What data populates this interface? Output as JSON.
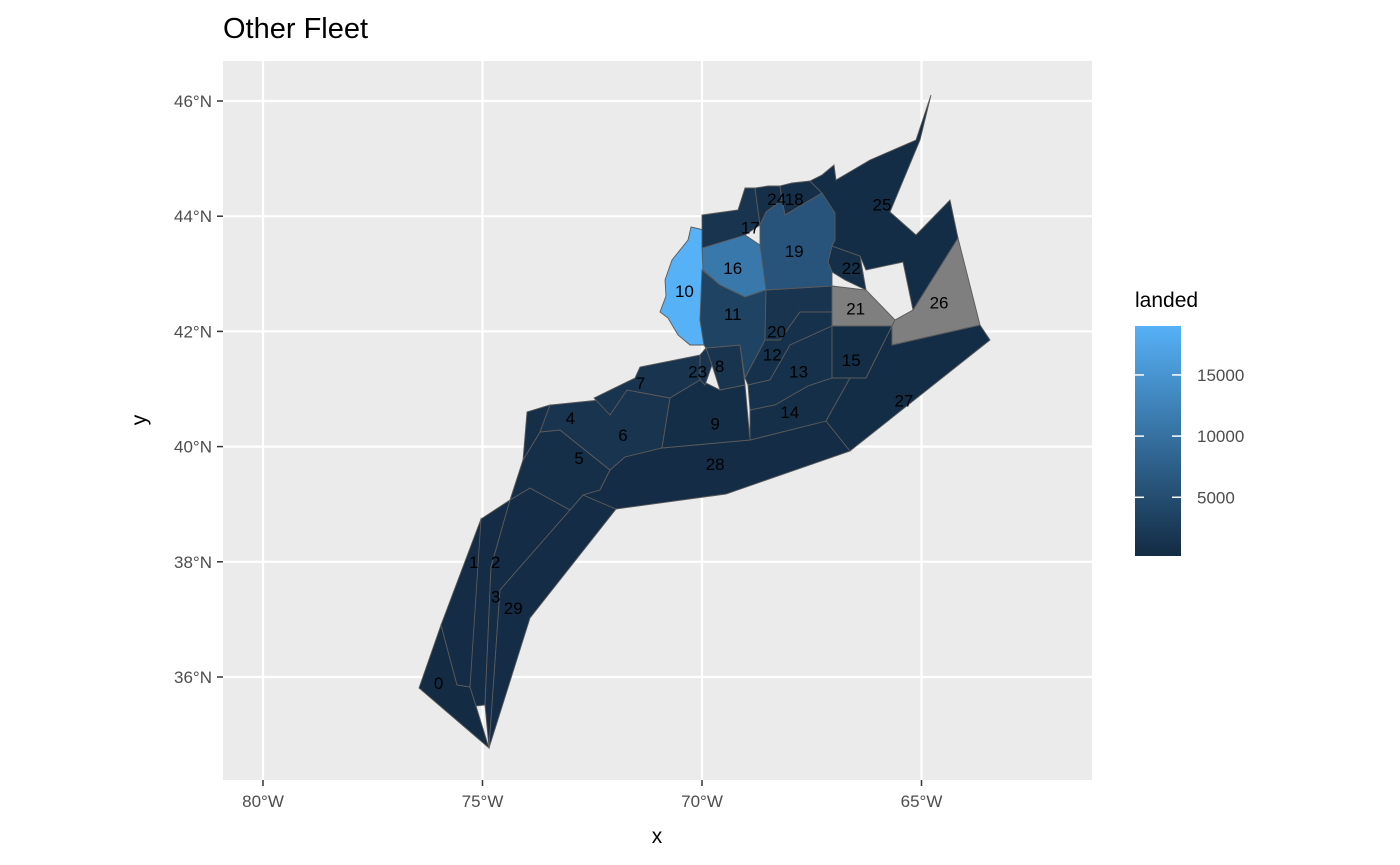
{
  "chart_data": {
    "type": "choropleth-map",
    "title": "Other Fleet",
    "xlabel": "x",
    "ylabel": "y",
    "x_ticks": [
      "80°W",
      "75°W",
      "70°W",
      "65°W"
    ],
    "y_ticks": [
      "36°N",
      "38°N",
      "40°N",
      "42°N",
      "44°N",
      "46°N"
    ],
    "legend": {
      "title": "landed",
      "ticks": [
        {
          "label": "15000",
          "value": 15000
        },
        {
          "label": "10000",
          "value": 10000
        },
        {
          "label": "5000",
          "value": 5000
        }
      ],
      "range": [
        200,
        19000
      ],
      "low_color": "#132B43",
      "high_color": "#56B1F7",
      "na_color": "#7F7F7F"
    },
    "zones": [
      {
        "id": "0",
        "label": "0",
        "lon": -76.0,
        "lat": 35.9,
        "landed": 300
      },
      {
        "id": "1",
        "label": "1",
        "lon": -75.2,
        "lat": 38.0,
        "landed": 400
      },
      {
        "id": "2",
        "label": "2",
        "lon": -74.7,
        "lat": 38.0,
        "landed": 400
      },
      {
        "id": "3",
        "label": "3",
        "lon": -74.7,
        "lat": 37.4,
        "landed": 400
      },
      {
        "id": "4",
        "label": "4",
        "lon": -73.0,
        "lat": 40.5,
        "landed": 800
      },
      {
        "id": "5",
        "label": "5",
        "lon": -72.8,
        "lat": 39.8,
        "landed": 800
      },
      {
        "id": "6",
        "label": "6",
        "lon": -71.8,
        "lat": 40.2,
        "landed": 1500
      },
      {
        "id": "7",
        "label": "7",
        "lon": -71.4,
        "lat": 41.1,
        "landed": 1500
      },
      {
        "id": "8",
        "label": "8",
        "lon": -69.6,
        "lat": 41.4,
        "landed": 1500
      },
      {
        "id": "9",
        "label": "9",
        "lon": -69.7,
        "lat": 40.4,
        "landed": 600
      },
      {
        "id": "10",
        "label": "10",
        "lon": -70.4,
        "lat": 42.7,
        "landed": 19000
      },
      {
        "id": "11",
        "label": "11",
        "lon": -69.3,
        "lat": 42.3,
        "landed": 3500
      },
      {
        "id": "12",
        "label": "12",
        "lon": -68.4,
        "lat": 41.6,
        "landed": 1000
      },
      {
        "id": "13",
        "label": "13",
        "lon": -67.8,
        "lat": 41.3,
        "landed": 1000
      },
      {
        "id": "14",
        "label": "14",
        "lon": -68.0,
        "lat": 40.6,
        "landed": 800
      },
      {
        "id": "15",
        "label": "15",
        "lon": -66.6,
        "lat": 41.5,
        "landed": 600
      },
      {
        "id": "16",
        "label": "16",
        "lon": -69.3,
        "lat": 43.1,
        "landed": 11000
      },
      {
        "id": "17",
        "label": "17",
        "lon": -68.9,
        "lat": 43.8,
        "landed": 1500
      },
      {
        "id": "18",
        "label": "18",
        "lon": -67.9,
        "lat": 44.3,
        "landed": 800
      },
      {
        "id": "19",
        "label": "19",
        "lon": -67.9,
        "lat": 43.4,
        "landed": 6000
      },
      {
        "id": "20",
        "label": "20",
        "lon": -68.3,
        "lat": 42.0,
        "landed": 1500
      },
      {
        "id": "21",
        "label": "21",
        "lon": -66.5,
        "lat": 42.4,
        "landed": null
      },
      {
        "id": "22",
        "label": "22",
        "lon": -66.6,
        "lat": 43.1,
        "landed": 700
      },
      {
        "id": "23",
        "label": "23",
        "lon": -70.1,
        "lat": 41.3,
        "landed": 1500
      },
      {
        "id": "24",
        "label": "24",
        "lon": -68.3,
        "lat": 44.3,
        "landed": 700
      },
      {
        "id": "25",
        "label": "25",
        "lon": -65.9,
        "lat": 44.2,
        "landed": 500
      },
      {
        "id": "26",
        "label": "26",
        "lon": -64.6,
        "lat": 42.5,
        "landed": null
      },
      {
        "id": "27",
        "label": "27",
        "lon": -65.4,
        "lat": 40.8,
        "landed": 500
      },
      {
        "id": "28",
        "label": "28",
        "lon": -69.7,
        "lat": 39.7,
        "landed": 400
      },
      {
        "id": "29",
        "label": "29",
        "lon": -74.3,
        "lat": 37.2,
        "landed": 400
      }
    ]
  }
}
